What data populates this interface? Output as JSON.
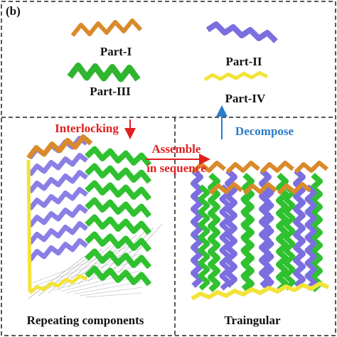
{
  "panel_label": "(b)",
  "parts": [
    {
      "label": "Part-I"
    },
    {
      "label": "Part-III"
    },
    {
      "label": "Part-II"
    },
    {
      "label": "Part-IV"
    }
  ],
  "arrows": {
    "interlocking": "Interlocking",
    "decompose": "Decompose",
    "assemble": [
      "Assemble",
      "in sequence"
    ]
  },
  "structures": {
    "left": "Repeating components",
    "right": "Traingular"
  }
}
